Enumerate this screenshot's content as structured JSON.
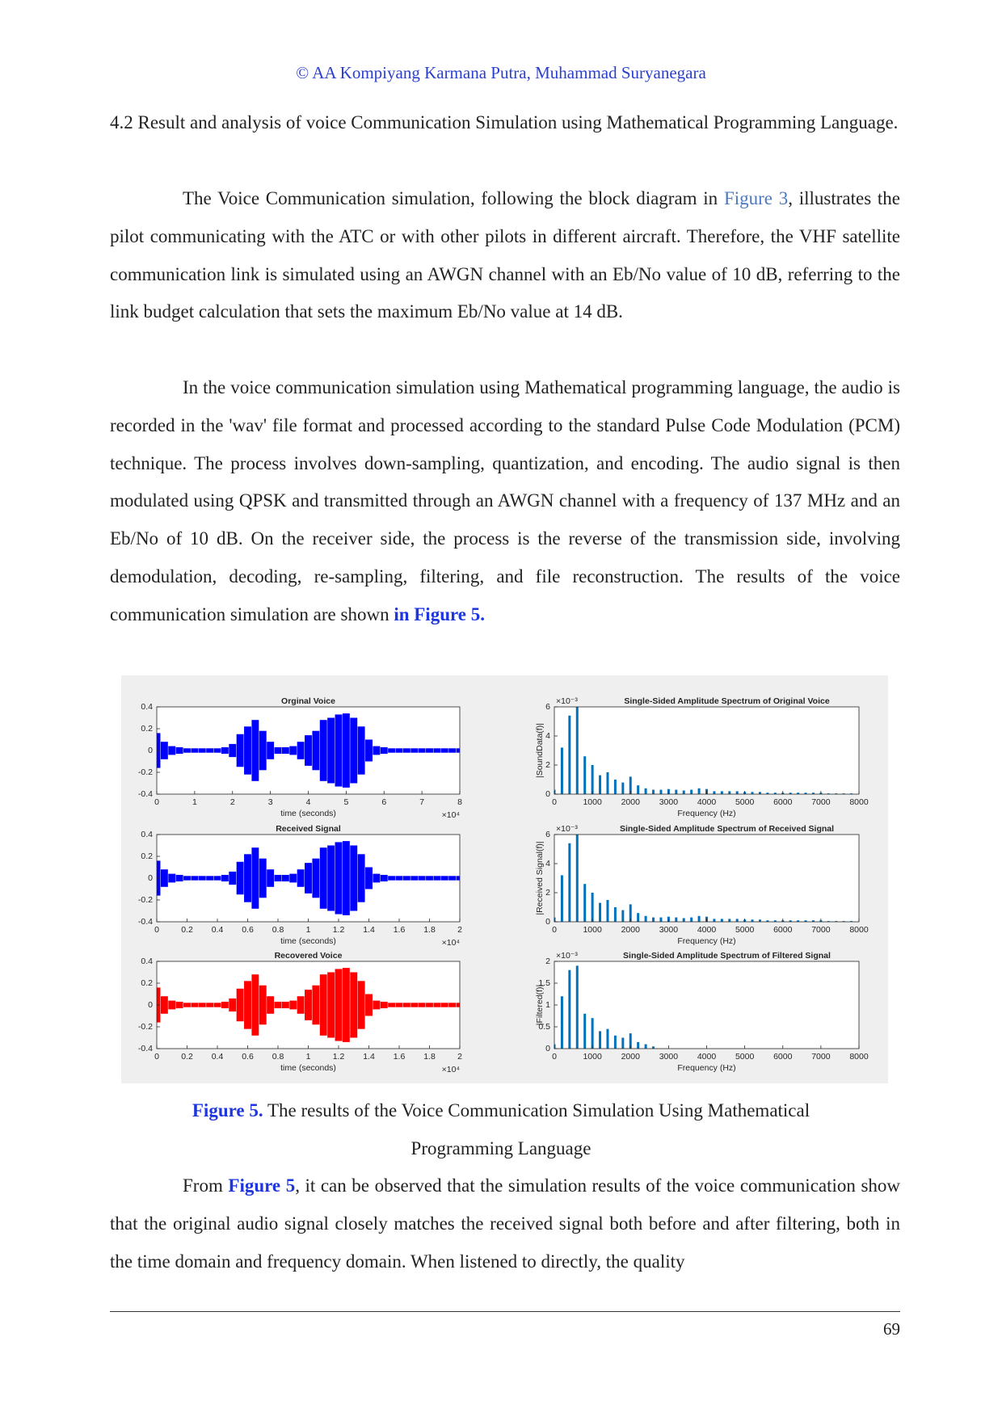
{
  "header": {
    "copyright": "© AA Kompiyang Karmana Putra, Muhammad Suryanegara"
  },
  "section": {
    "number": "4.2",
    "title": "Result and analysis of voice Communication Simulation using Mathematical Programming Language."
  },
  "paragraphs": [
    [
      {
        "text": "The Voice Communication simulation, following the block diagram in "
      },
      {
        "text": "Figure 3",
        "style": "link"
      },
      {
        "text": ", illustrates the pilot communicating with the ATC or with other pilots in different aircraft. Therefore, the VHF satellite communication link is simulated using an AWGN channel with an Eb/No value of 10 dB, referring to the link budget calculation that sets the maximum Eb/No value at 14 dB."
      }
    ],
    [
      {
        "text": "In the voice communication simulation using Mathematical programming language, the audio is recorded in the 'wav' file format and processed according to the standard Pulse Code Modulation (PCM) technique. The process involves down-sampling, quantization, and encoding. The audio signal is then modulated using QPSK and transmitted through an AWGN channel with a frequency of 137 MHz and an Eb/No of 10 dB. On the receiver side, the process is the reverse of the transmission side, involving demodulation, decoding, re-sampling, filtering, and file reconstruction. The results of the voice communication simulation are shown "
      },
      {
        "text": "in Figure 5.",
        "style": "ref"
      }
    ],
    [
      {
        "text": "From "
      },
      {
        "text": "Figure 5",
        "style": "ref"
      },
      {
        "text": ", it can be observed that the simulation results of the voice communication show that the original audio signal closely matches the received signal both before and after filtering, both in the time domain and frequency domain. When listened to directly, the quality"
      }
    ]
  ],
  "figure": {
    "label": "Figure 5.",
    "caption": "The results of the Voice Communication Simulation Using Mathematical Programming Language"
  },
  "footer": {
    "page_number": 69
  },
  "chart_data": [
    {
      "type": "waveform",
      "title": "Orginal Voice",
      "xlabel": "time (seconds)",
      "x_multiplier": "×10⁴",
      "color": "#0000ff",
      "xlim": [
        0,
        8
      ],
      "xticks": [
        0,
        1,
        2,
        3,
        4,
        5,
        6,
        7,
        8
      ],
      "ylim": [
        -0.4,
        0.4
      ],
      "yticks": [
        -0.4,
        -0.2,
        0,
        0.2,
        0.4
      ],
      "x": [
        0,
        0.2,
        0.4,
        0.6,
        0.8,
        1,
        1.2,
        1.4,
        1.6,
        1.8,
        2,
        2.2,
        2.4,
        2.6,
        2.8,
        3,
        3.2,
        3.4,
        3.6,
        3.8,
        4,
        4.2,
        4.4,
        4.6,
        4.8,
        5,
        5.2,
        5.4,
        5.6,
        5.8,
        6,
        6.2,
        6.4,
        6.6,
        6.8,
        7,
        7.2,
        7.4,
        7.6,
        7.8,
        8
      ],
      "values": [
        0.16,
        0.08,
        0.04,
        0.03,
        0.02,
        0.02,
        0.02,
        0.02,
        0.02,
        0.03,
        0.06,
        0.15,
        0.22,
        0.28,
        0.18,
        0.08,
        0.03,
        0.03,
        0.04,
        0.08,
        0.14,
        0.18,
        0.28,
        0.3,
        0.33,
        0.34,
        0.3,
        0.22,
        0.1,
        0.04,
        0.03,
        0.02,
        0.02,
        0.02,
        0.02,
        0.02,
        0.02,
        0.02,
        0.02,
        0.02,
        0.02
      ]
    },
    {
      "type": "waveform",
      "title": "Received Signal",
      "xlabel": "time (seconds)",
      "x_multiplier": "×10⁴",
      "color": "#0000ff",
      "xlim": [
        0,
        2
      ],
      "xticks": [
        0,
        0.2,
        0.4,
        0.6,
        0.8,
        1,
        1.2,
        1.4,
        1.6,
        1.8,
        2
      ],
      "ylim": [
        -0.4,
        0.4
      ],
      "yticks": [
        -0.4,
        -0.2,
        0,
        0.2,
        0.4
      ],
      "x": [
        0,
        0.05,
        0.1,
        0.15,
        0.2,
        0.25,
        0.3,
        0.35,
        0.4,
        0.45,
        0.5,
        0.55,
        0.6,
        0.65,
        0.7,
        0.75,
        0.8,
        0.85,
        0.9,
        0.95,
        1,
        1.05,
        1.1,
        1.15,
        1.2,
        1.25,
        1.3,
        1.35,
        1.4,
        1.45,
        1.5,
        1.55,
        1.6,
        1.65,
        1.7,
        1.75,
        1.8,
        1.85,
        1.9,
        1.95,
        2
      ],
      "values": [
        0.16,
        0.08,
        0.04,
        0.03,
        0.02,
        0.02,
        0.02,
        0.02,
        0.02,
        0.03,
        0.06,
        0.15,
        0.22,
        0.28,
        0.18,
        0.08,
        0.03,
        0.03,
        0.04,
        0.08,
        0.14,
        0.18,
        0.28,
        0.3,
        0.33,
        0.34,
        0.3,
        0.22,
        0.1,
        0.04,
        0.03,
        0.02,
        0.02,
        0.02,
        0.02,
        0.02,
        0.02,
        0.02,
        0.02,
        0.02,
        0.02
      ]
    },
    {
      "type": "waveform",
      "title": "Recovered Voice",
      "xlabel": "time (seconds)",
      "x_multiplier": "×10⁴",
      "color": "#ff0000",
      "xlim": [
        0,
        2
      ],
      "xticks": [
        0,
        0.2,
        0.4,
        0.6,
        0.8,
        1,
        1.2,
        1.4,
        1.6,
        1.8,
        2
      ],
      "ylim": [
        -0.4,
        0.4
      ],
      "yticks": [
        -0.4,
        -0.2,
        0,
        0.2,
        0.4
      ],
      "x": [
        0,
        0.05,
        0.1,
        0.15,
        0.2,
        0.25,
        0.3,
        0.35,
        0.4,
        0.45,
        0.5,
        0.55,
        0.6,
        0.65,
        0.7,
        0.75,
        0.8,
        0.85,
        0.9,
        0.95,
        1,
        1.05,
        1.1,
        1.15,
        1.2,
        1.25,
        1.3,
        1.35,
        1.4,
        1.45,
        1.5,
        1.55,
        1.6,
        1.65,
        1.7,
        1.75,
        1.8,
        1.85,
        1.9,
        1.95,
        2
      ],
      "values": [
        0.16,
        0.08,
        0.04,
        0.03,
        0.02,
        0.02,
        0.02,
        0.02,
        0.02,
        0.03,
        0.06,
        0.15,
        0.22,
        0.28,
        0.18,
        0.08,
        0.03,
        0.03,
        0.04,
        0.08,
        0.14,
        0.18,
        0.28,
        0.3,
        0.33,
        0.34,
        0.3,
        0.22,
        0.1,
        0.04,
        0.03,
        0.02,
        0.02,
        0.02,
        0.02,
        0.02,
        0.02,
        0.02,
        0.02,
        0.02,
        0.02
      ]
    },
    {
      "type": "stem",
      "title": "Single-Sided Amplitude Spectrum of Original Voice",
      "xlabel": "Frequency (Hz)",
      "ylabel": "|SoundData(f)|",
      "y_multiplier": "×10⁻³",
      "color": "#0072bd",
      "xlim": [
        0,
        8000
      ],
      "xticks": [
        0,
        1000,
        2000,
        3000,
        4000,
        5000,
        6000,
        7000,
        8000
      ],
      "ylim": [
        0,
        6
      ],
      "yticks": [
        0,
        2,
        4,
        6
      ],
      "x": [
        0,
        200,
        400,
        600,
        800,
        1000,
        1200,
        1400,
        1600,
        1800,
        2000,
        2200,
        2400,
        2600,
        2800,
        3000,
        3200,
        3400,
        3600,
        3800,
        4000,
        4200,
        4400,
        4600,
        4800,
        5000,
        5200,
        5400,
        5600,
        5800,
        6000,
        6200,
        6400,
        6600,
        6800,
        7000,
        7200,
        7400,
        7600,
        7800
      ],
      "values": [
        0.3,
        3.2,
        5.4,
        6,
        2.6,
        2,
        1.3,
        1.5,
        1,
        0.8,
        1.2,
        0.6,
        0.4,
        0.3,
        0.3,
        0.35,
        0.3,
        0.25,
        0.3,
        0.4,
        0.35,
        0.2,
        0.2,
        0.2,
        0.2,
        0.15,
        0.15,
        0.15,
        0.1,
        0.1,
        0.1,
        0.1,
        0.1,
        0.1,
        0.1,
        0.1,
        0.05,
        0.05,
        0.05,
        0.05
      ]
    },
    {
      "type": "stem",
      "title": "Single-Sided Amplitude Spectrum of Received Signal",
      "xlabel": "Frequency (Hz)",
      "ylabel": "|Received Signal(f)|",
      "y_multiplier": "×10⁻³",
      "color": "#0072bd",
      "xlim": [
        0,
        8000
      ],
      "xticks": [
        0,
        1000,
        2000,
        3000,
        4000,
        5000,
        6000,
        7000,
        8000
      ],
      "ylim": [
        0,
        6
      ],
      "yticks": [
        0,
        2,
        4,
        6
      ],
      "x": [
        0,
        200,
        400,
        600,
        800,
        1000,
        1200,
        1400,
        1600,
        1800,
        2000,
        2200,
        2400,
        2600,
        2800,
        3000,
        3200,
        3400,
        3600,
        3800,
        4000,
        4200,
        4400,
        4600,
        4800,
        5000,
        5200,
        5400,
        5600,
        5800,
        6000,
        6200,
        6400,
        6600,
        6800,
        7000,
        7200,
        7400,
        7600,
        7800
      ],
      "values": [
        0.3,
        3.2,
        5.4,
        6,
        2.6,
        2,
        1.3,
        1.5,
        1,
        0.8,
        1.2,
        0.6,
        0.4,
        0.3,
        0.3,
        0.35,
        0.3,
        0.25,
        0.3,
        0.4,
        0.35,
        0.2,
        0.2,
        0.2,
        0.2,
        0.15,
        0.15,
        0.15,
        0.1,
        0.1,
        0.1,
        0.1,
        0.1,
        0.1,
        0.1,
        0.1,
        0.05,
        0.05,
        0.05,
        0.05
      ]
    },
    {
      "type": "stem",
      "title": "Single-Sided Amplitude Spectrum of Filtered Signal",
      "xlabel": "Frequency (Hz)",
      "ylabel": "|Filtered(f)|",
      "y_multiplier": "×10⁻³",
      "color": "#0072bd",
      "xlim": [
        0,
        8000
      ],
      "xticks": [
        0,
        1000,
        2000,
        3000,
        4000,
        5000,
        6000,
        7000,
        8000
      ],
      "ylim": [
        0,
        2
      ],
      "yticks": [
        0,
        0.5,
        1,
        1.5,
        2
      ],
      "x": [
        0,
        200,
        400,
        600,
        800,
        1000,
        1200,
        1400,
        1600,
        1800,
        2000,
        2200,
        2400,
        2600,
        2800,
        3000,
        3200,
        3400,
        3600,
        3800,
        4000,
        4200,
        4400,
        4600,
        4800,
        5000,
        5200,
        5400,
        5600,
        5800,
        6000,
        6200,
        6400,
        6600,
        6800,
        7000,
        7200,
        7400,
        7600,
        7800
      ],
      "values": [
        0.1,
        1.2,
        1.8,
        1.9,
        0.8,
        0.7,
        0.4,
        0.45,
        0.3,
        0.25,
        0.35,
        0.15,
        0.1,
        0.05,
        0,
        0,
        0,
        0,
        0,
        0,
        0,
        0,
        0,
        0,
        0,
        0,
        0,
        0,
        0,
        0,
        0,
        0,
        0,
        0,
        0,
        0,
        0,
        0,
        0,
        0
      ]
    }
  ]
}
